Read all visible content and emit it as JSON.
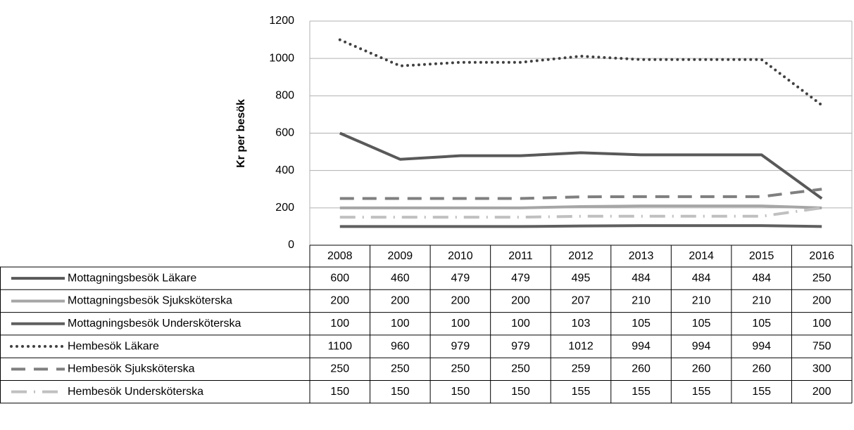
{
  "chart_data": {
    "type": "line",
    "y_label": "Kr per besök",
    "categories": [
      "2008",
      "2009",
      "2010",
      "2011",
      "2012",
      "2013",
      "2014",
      "2015",
      "2016"
    ],
    "ylim": [
      0,
      1200
    ],
    "yticks": [
      0,
      200,
      400,
      600,
      800,
      1000,
      1200
    ],
    "grid": true,
    "data_table": true,
    "series": [
      {
        "name": "Mottagningsbesök Läkare",
        "color": "#595959",
        "dash": "solid",
        "values": [
          600,
          460,
          479,
          479,
          495,
          484,
          484,
          484,
          250
        ]
      },
      {
        "name": "Mottagningsbesök Sjuksköterska",
        "color": "#a6a6a6",
        "dash": "solid",
        "values": [
          200,
          200,
          200,
          200,
          207,
          210,
          210,
          210,
          200
        ]
      },
      {
        "name": "Mottagningsbesök Undersköterska",
        "color": "#5f5f5f",
        "dash": "solid",
        "values": [
          100,
          100,
          100,
          100,
          103,
          105,
          105,
          105,
          100
        ]
      },
      {
        "name": "Hembesök Läkare",
        "color": "#404040",
        "dash": "dotted",
        "values": [
          1100,
          960,
          979,
          979,
          1012,
          994,
          994,
          994,
          750
        ]
      },
      {
        "name": "Hembesök Sjuksköterska",
        "color": "#7f7f7f",
        "dash": "dashed",
        "values": [
          250,
          250,
          250,
          250,
          259,
          260,
          260,
          260,
          300
        ]
      },
      {
        "name": "Hembesök Undersköterska",
        "color": "#c0c0c0",
        "dash": "dashdot",
        "values": [
          150,
          150,
          150,
          150,
          155,
          155,
          155,
          155,
          200
        ]
      }
    ]
  }
}
